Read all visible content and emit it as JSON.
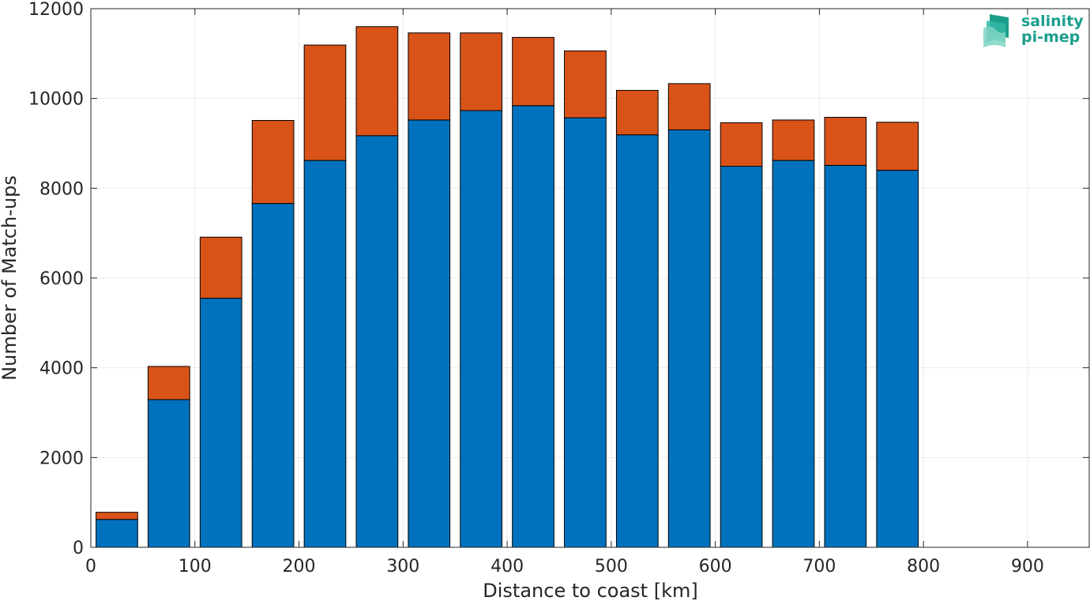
{
  "chart_data": {
    "type": "bar",
    "stacked": true,
    "title": "",
    "xlabel": "Distance to coast [km]",
    "ylabel": "Number of Match-ups",
    "xlim": [
      0,
      960
    ],
    "ylim": [
      0,
      12000
    ],
    "xticks": [
      0,
      100,
      200,
      300,
      400,
      500,
      600,
      700,
      800,
      900
    ],
    "yticks": [
      0,
      2000,
      4000,
      6000,
      8000,
      10000,
      12000
    ],
    "grid": true,
    "bin_width": 50,
    "x": [
      25,
      75,
      125,
      175,
      225,
      275,
      325,
      375,
      425,
      475,
      525,
      575,
      625,
      675,
      725,
      775,
      825,
      875,
      925
    ],
    "series": [
      {
        "color": "#0072BD",
        "values": [
          620,
          3290,
          5550,
          7660,
          8620,
          9170,
          9520,
          9730,
          9840,
          9570,
          9190,
          9300,
          8490,
          8620,
          8510,
          8400,
          0,
          0,
          0
        ]
      },
      {
        "color": "#D95319",
        "values": [
          160,
          740,
          1360,
          1850,
          2570,
          2430,
          1940,
          1730,
          1520,
          1490,
          990,
          1030,
          970,
          900,
          1070,
          1070,
          0,
          0,
          0
        ]
      }
    ]
  },
  "logo": {
    "line1": "salinity",
    "line2": "pi-mep",
    "icon": "salinity-wave-logo-icon",
    "color": "#1a9e8c"
  }
}
